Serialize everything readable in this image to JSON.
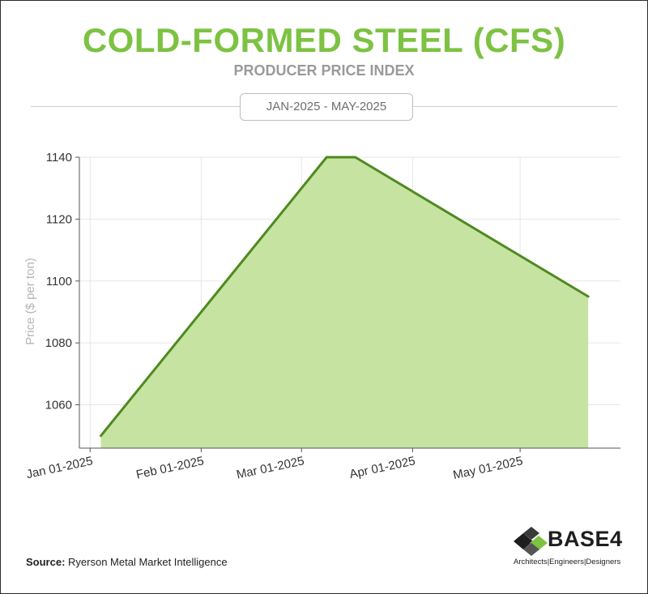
{
  "header": {
    "title": "COLD-FORMED STEEL (CFS)",
    "subtitle": "PRODUCER PRICE INDEX",
    "date_range": "JAN-2025 - MAY-2025"
  },
  "source": {
    "label": "Source:",
    "text": "Ryerson Metal Market Intelligence"
  },
  "logo": {
    "wordmark": "BASE4",
    "tagline": "Architects|Engineers|Designers"
  },
  "colors": {
    "accent": "#7dc242",
    "line": "#4e8a1f",
    "fill": "#c6e3a2"
  },
  "chart_data": {
    "type": "area",
    "title": "COLD-FORMED STEEL (CFS)",
    "subtitle": "PRODUCER PRICE INDEX",
    "xlabel": "",
    "ylabel": "Price ($ per ton)",
    "x_ticks": [
      "Jan 01-2025",
      "Feb 01-2025",
      "Mar 01-2025",
      "Apr 01-2025",
      "May 01-2025"
    ],
    "y_ticks": [
      1060,
      1080,
      1100,
      1120,
      1140
    ],
    "ylim": [
      1046,
      1140
    ],
    "grid": true,
    "series": [
      {
        "points": [
          {
            "x": "2025-01-04",
            "y": 1050
          },
          {
            "x": "2025-03-08",
            "y": 1140
          },
          {
            "x": "2025-03-16",
            "y": 1140
          },
          {
            "x": "2025-05-20",
            "y": 1095
          }
        ]
      }
    ]
  }
}
